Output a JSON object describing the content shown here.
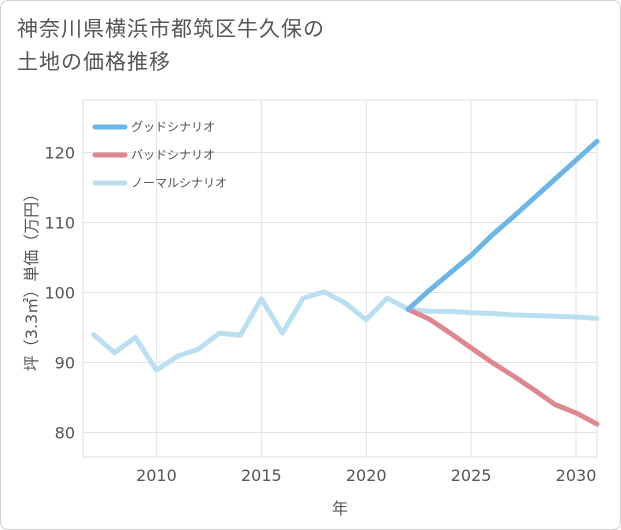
{
  "chart_data": {
    "type": "line",
    "title_line1": "神奈川県横浜市都筑区牛久保の",
    "title_line2": "土地の価格推移",
    "xlabel": "年",
    "ylabel": "坪（3.3㎡）単価（万円）",
    "xlim": [
      2006.5,
      2031
    ],
    "ylim": [
      76.5,
      127.5
    ],
    "xticks": [
      2010,
      2015,
      2020,
      2025,
      2030
    ],
    "yticks": [
      80,
      90,
      100,
      110,
      120
    ],
    "grid": true,
    "legend_position": "top-left",
    "series": [
      {
        "name": "グッドシナリオ",
        "color": "#6bb5e8",
        "x": [
          2022,
          2023,
          2024,
          2025,
          2026,
          2027,
          2028,
          2029,
          2030,
          2031
        ],
        "y": [
          97.6,
          100.3,
          102.8,
          105.3,
          108.2,
          110.8,
          113.5,
          116.2,
          118.9,
          121.6
        ]
      },
      {
        "name": "バッドシナリオ",
        "color": "#dd8890",
        "x": [
          2022,
          2023,
          2024,
          2025,
          2026,
          2027,
          2028,
          2029,
          2030,
          2031
        ],
        "y": [
          97.6,
          96.2,
          94.2,
          92.1,
          90.0,
          88.1,
          86.1,
          84.0,
          82.8,
          81.2
        ]
      },
      {
        "name": "ノーマルシナリオ",
        "color": "#b9dff0",
        "x": [
          2007,
          2008,
          2009,
          2010,
          2011,
          2012,
          2013,
          2014,
          2015,
          2016,
          2017,
          2018,
          2019,
          2020,
          2021,
          2022,
          2023,
          2024,
          2025,
          2026,
          2027,
          2028,
          2029,
          2030,
          2031
        ],
        "y": [
          94.0,
          91.4,
          93.6,
          88.9,
          90.9,
          91.9,
          94.2,
          93.9,
          99.1,
          94.2,
          99.2,
          100.1,
          98.5,
          96.1,
          99.2,
          97.6,
          97.3,
          97.3,
          97.1,
          97.0,
          96.8,
          96.7,
          96.6,
          96.5,
          96.3
        ]
      }
    ]
  }
}
